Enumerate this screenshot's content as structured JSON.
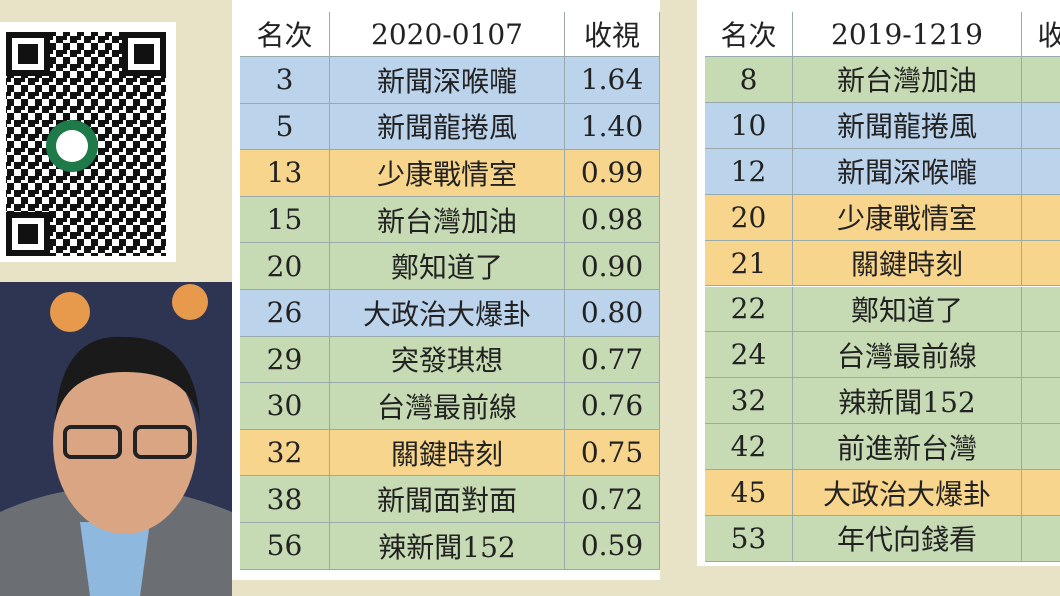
{
  "tables": [
    {
      "header": [
        "名次",
        "2020-0107",
        "收視"
      ],
      "rows": [
        {
          "cells": [
            "3",
            "新聞深喉嚨",
            "1.64"
          ],
          "color": "#bcd3ec"
        },
        {
          "cells": [
            "5",
            "新聞龍捲風",
            "1.40"
          ],
          "color": "#bcd3ec"
        },
        {
          "cells": [
            "13",
            "少康戰情室",
            "0.99"
          ],
          "color": "#f8d58c"
        },
        {
          "cells": [
            "15",
            "新台灣加油",
            "0.98"
          ],
          "color": "#c6dab3"
        },
        {
          "cells": [
            "20",
            "鄭知道了",
            "0.90"
          ],
          "color": "#c6dab3"
        },
        {
          "cells": [
            "26",
            "大政治大爆卦",
            "0.80"
          ],
          "color": "#bcd3ec"
        },
        {
          "cells": [
            "29",
            "突發琪想",
            "0.77"
          ],
          "color": "#c6dab3"
        },
        {
          "cells": [
            "30",
            "台灣最前線",
            "0.76"
          ],
          "color": "#c6dab3"
        },
        {
          "cells": [
            "32",
            "關鍵時刻",
            "0.75"
          ],
          "color": "#f8d58c"
        },
        {
          "cells": [
            "38",
            "新聞面對面",
            "0.72"
          ],
          "color": "#c6dab3"
        },
        {
          "cells": [
            "56",
            "辣新聞152",
            "0.59"
          ],
          "color": "#c6dab3"
        }
      ]
    },
    {
      "header": [
        "名次",
        "2019-1219",
        "收"
      ],
      "rows": [
        {
          "cells": [
            "8",
            "新台灣加油"
          ],
          "color": "#c6dab3"
        },
        {
          "cells": [
            "10",
            "新聞龍捲風"
          ],
          "color": "#bcd3ec"
        },
        {
          "cells": [
            "12",
            "新聞深喉嚨"
          ],
          "color": "#bcd3ec"
        },
        {
          "cells": [
            "20",
            "少康戰情室"
          ],
          "color": "#f8d58c"
        },
        {
          "cells": [
            "21",
            "關鍵時刻"
          ],
          "color": "#f8d58c"
        },
        {
          "cells": [
            "22",
            "鄭知道了"
          ],
          "color": "#c6dab3"
        },
        {
          "cells": [
            "24",
            "台灣最前線"
          ],
          "color": "#c6dab3"
        },
        {
          "cells": [
            "32",
            "辣新聞152"
          ],
          "color": "#c6dab3"
        },
        {
          "cells": [
            "42",
            "前進新台灣"
          ],
          "color": "#c6dab3"
        },
        {
          "cells": [
            "45",
            "大政治大爆卦"
          ],
          "color": "#f8d58c"
        },
        {
          "cells": [
            "53",
            "年代向錢看"
          ],
          "color": "#c6dab3"
        }
      ]
    }
  ]
}
